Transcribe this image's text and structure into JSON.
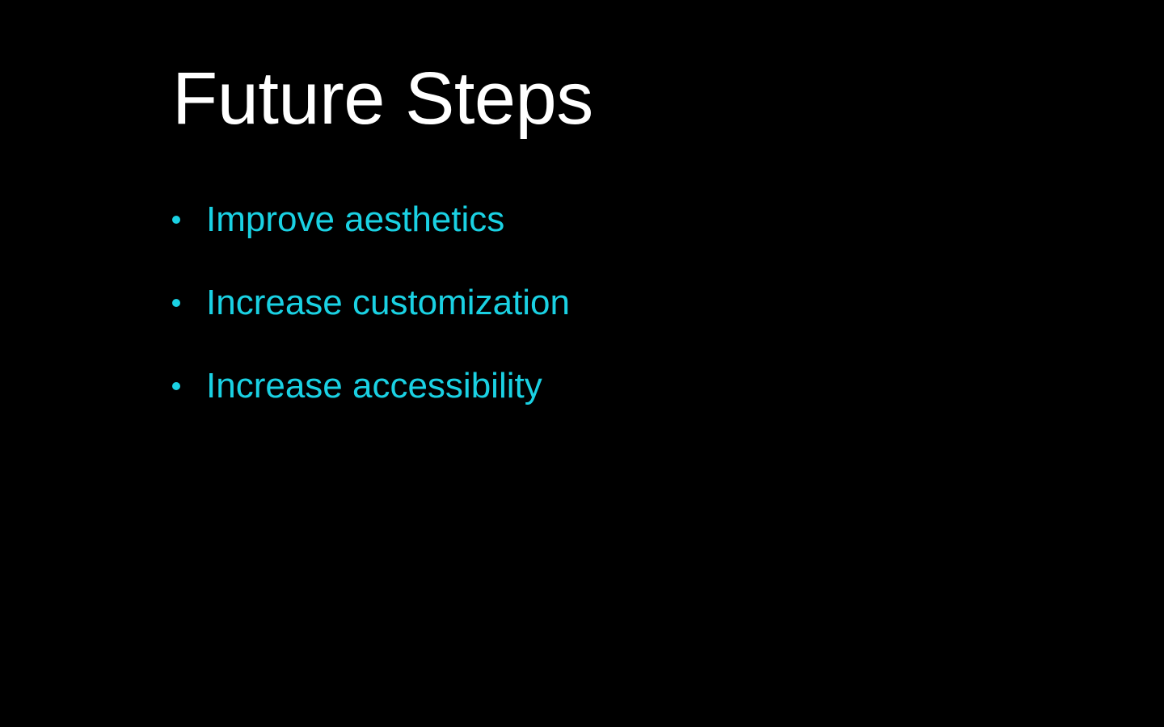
{
  "slide": {
    "title": "Future Steps",
    "bullets": [
      {
        "text": "Improve aesthetics"
      },
      {
        "text": "Increase customization"
      },
      {
        "text": "Increase accessibility"
      }
    ]
  },
  "colors": {
    "background": "#000000",
    "title": "#ffffff",
    "accent": "#1ad1e3"
  }
}
